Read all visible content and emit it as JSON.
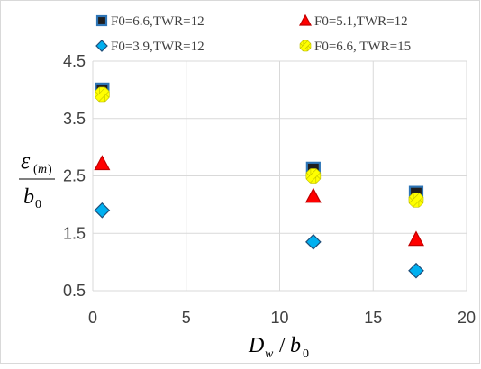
{
  "chart_data": {
    "type": "scatter",
    "title": "",
    "xlabel": "Dw / b0",
    "ylabel": "ε(m) / b0",
    "xlim": [
      0,
      20
    ],
    "ylim": [
      0.5,
      4.5
    ],
    "xticks": [
      "0",
      "5",
      "10",
      "15",
      "20"
    ],
    "yticks": [
      "4.5",
      "3.5",
      "2.5",
      "1.5",
      "0.5"
    ],
    "grid": true,
    "legend_position": "top",
    "series": [
      {
        "name": "F0=6.6,TWR=12",
        "marker": "square",
        "color": "#1f1f1f",
        "edge": "#2e75b6",
        "points": [
          [
            0.5,
            4.0
          ],
          [
            11.8,
            2.62
          ],
          [
            17.3,
            2.2
          ]
        ]
      },
      {
        "name": "F0=5.1,TWR=12",
        "marker": "triangle",
        "color": "#ff0000",
        "edge": "#c00000",
        "points": [
          [
            0.5,
            2.72
          ],
          [
            11.8,
            2.15
          ],
          [
            17.3,
            1.4
          ]
        ]
      },
      {
        "name": "F0=3.9,TWR=12",
        "marker": "diamond",
        "color": "#00b0f0",
        "edge": "#1f4e79",
        "points": [
          [
            0.5,
            1.9
          ],
          [
            11.8,
            1.35
          ],
          [
            17.3,
            0.85
          ]
        ]
      },
      {
        "name": "F0=6.6, TWR=15",
        "marker": "asterisk",
        "color": "#ffff00",
        "edge": "#bfbf00",
        "points": [
          [
            0.5,
            3.92
          ],
          [
            11.8,
            2.5
          ],
          [
            17.3,
            2.08
          ]
        ]
      }
    ]
  }
}
